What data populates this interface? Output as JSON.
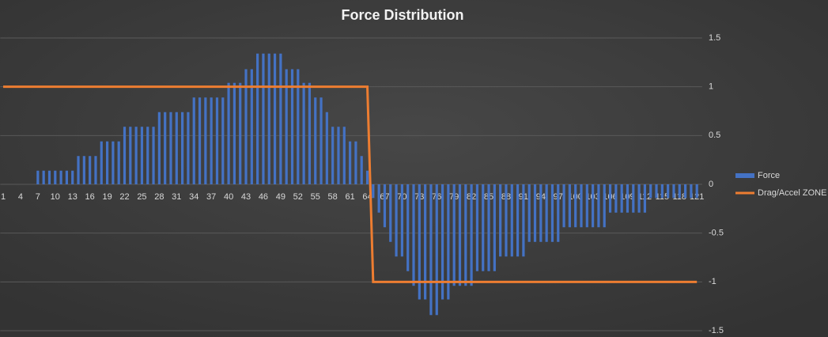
{
  "chart_data": {
    "type": "bar",
    "title": "Force Distribution",
    "categories": [
      "1",
      null,
      null,
      "4",
      null,
      null,
      "7",
      null,
      null,
      "10",
      null,
      null,
      "13",
      null,
      null,
      "16",
      null,
      null,
      "19",
      null,
      null,
      "22",
      null,
      null,
      "25",
      null,
      null,
      "28",
      null,
      null,
      "31",
      null,
      null,
      "34",
      null,
      null,
      "37",
      null,
      null,
      "40",
      null,
      null,
      "43",
      null,
      null,
      "46",
      null,
      null,
      "49",
      null,
      null,
      "52",
      null,
      null,
      "55",
      null,
      null,
      "58",
      null,
      null,
      "61",
      null,
      null,
      "64",
      null,
      null,
      "67",
      null,
      null,
      "70",
      null,
      null,
      "73",
      null,
      null,
      "76",
      null,
      null,
      "79",
      null,
      null,
      "82",
      null,
      null,
      "85",
      null,
      null,
      "88",
      null,
      null,
      "91",
      null,
      null,
      "94",
      null,
      null,
      "97",
      null,
      null,
      "100",
      null,
      null,
      "103",
      null,
      null,
      "106",
      null,
      null,
      "109",
      null,
      null,
      "112",
      null,
      null,
      "115",
      null,
      null,
      "118",
      null,
      null,
      "121"
    ],
    "series": [
      {
        "name": "Force",
        "type": "bar",
        "color": "#4472c4",
        "values": [
          0,
          0,
          0,
          0,
          0,
          0,
          0.14,
          0.14,
          0.14,
          0.14,
          0.14,
          0.14,
          0.14,
          0.29,
          0.29,
          0.29,
          0.29,
          0.44,
          0.44,
          0.44,
          0.44,
          0.59,
          0.59,
          0.59,
          0.59,
          0.59,
          0.59,
          0.74,
          0.74,
          0.74,
          0.74,
          0.74,
          0.74,
          0.89,
          0.89,
          0.89,
          0.89,
          0.89,
          0.89,
          1.04,
          1.04,
          1.04,
          1.18,
          1.18,
          1.34,
          1.34,
          1.34,
          1.34,
          1.34,
          1.18,
          1.18,
          1.18,
          1.04,
          1.04,
          0.89,
          0.89,
          0.74,
          0.59,
          0.59,
          0.59,
          0.44,
          0.44,
          0.29,
          0.14,
          -0.14,
          -0.29,
          -0.44,
          -0.59,
          -0.74,
          -0.74,
          -0.89,
          -1.04,
          -1.18,
          -1.18,
          -1.34,
          -1.34,
          -1.18,
          -1.18,
          -1.04,
          -1.04,
          -1.04,
          -1.04,
          -0.89,
          -0.89,
          -0.89,
          -0.89,
          -0.74,
          -0.74,
          -0.74,
          -0.74,
          -0.74,
          -0.59,
          -0.59,
          -0.59,
          -0.59,
          -0.59,
          -0.59,
          -0.44,
          -0.44,
          -0.44,
          -0.44,
          -0.44,
          -0.44,
          -0.44,
          -0.44,
          -0.29,
          -0.29,
          -0.29,
          -0.29,
          -0.29,
          -0.29,
          -0.29,
          -0.14,
          -0.14,
          -0.14,
          -0.14,
          -0.14,
          -0.14,
          -0.14,
          -0.14,
          -0.14
        ]
      },
      {
        "name": "Drag/Accel ZONE",
        "type": "line",
        "color": "#ed7d31",
        "values": [
          1,
          1,
          1,
          1,
          1,
          1,
          1,
          1,
          1,
          1,
          1,
          1,
          1,
          1,
          1,
          1,
          1,
          1,
          1,
          1,
          1,
          1,
          1,
          1,
          1,
          1,
          1,
          1,
          1,
          1,
          1,
          1,
          1,
          1,
          1,
          1,
          1,
          1,
          1,
          1,
          1,
          1,
          1,
          1,
          1,
          1,
          1,
          1,
          1,
          1,
          1,
          1,
          1,
          1,
          1,
          1,
          1,
          1,
          1,
          1,
          1,
          1,
          1,
          1,
          -1,
          -1,
          -1,
          -1,
          -1,
          -1,
          -1,
          -1,
          -1,
          -1,
          -1,
          -1,
          -1,
          -1,
          -1,
          -1,
          -1,
          -1,
          -1,
          -1,
          -1,
          -1,
          -1,
          -1,
          -1,
          -1,
          -1,
          -1,
          -1,
          -1,
          -1,
          -1,
          -1,
          -1,
          -1,
          -1,
          -1,
          -1,
          -1,
          -1,
          -1,
          -1,
          -1,
          -1,
          -1,
          -1,
          -1,
          -1,
          -1,
          -1,
          -1,
          -1,
          -1,
          -1,
          -1,
          -1,
          -1
        ]
      }
    ],
    "ylim": [
      -1.5,
      1.5
    ],
    "yticks": [
      1.5,
      1,
      0.5,
      0,
      -0.5,
      -1,
      -1.5
    ],
    "grid": true,
    "legend": "right"
  }
}
